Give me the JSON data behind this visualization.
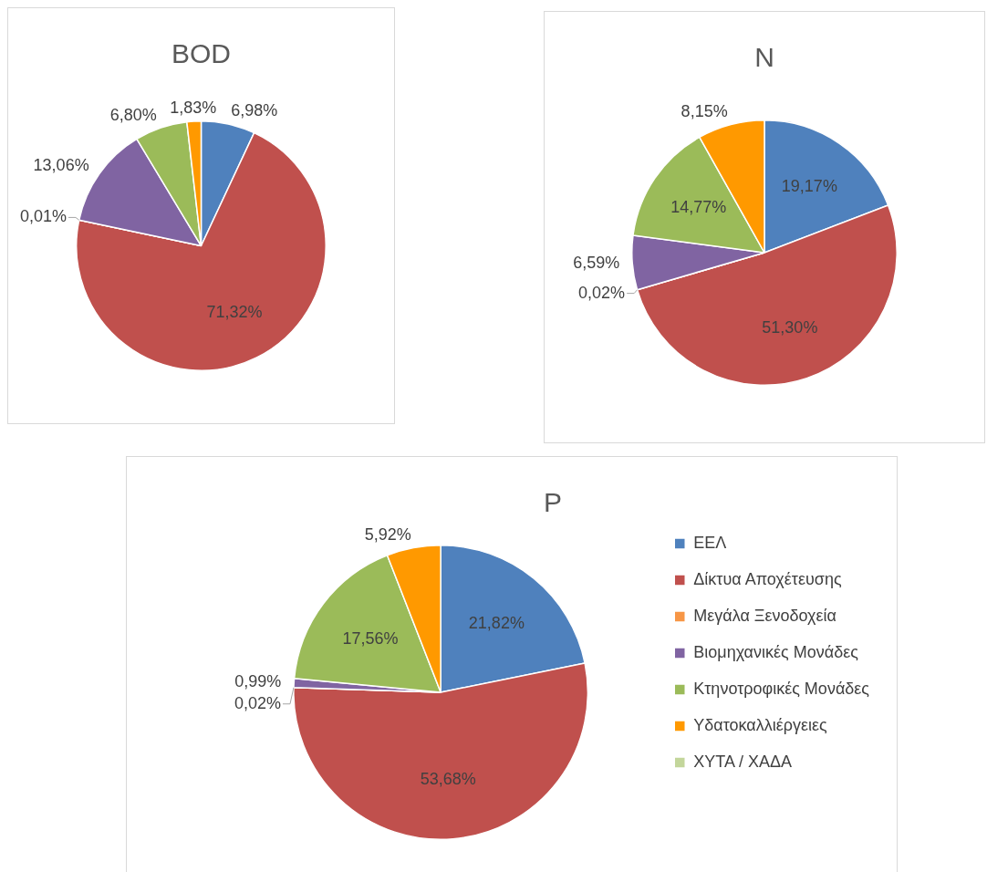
{
  "chart_data": [
    {
      "type": "pie",
      "title": "BOD",
      "categories": [
        null,
        null,
        null,
        null,
        null,
        null,
        null
      ],
      "values": [
        6.98,
        71.32,
        0.01,
        13.06,
        6.8,
        1.83,
        null
      ],
      "value_labels": [
        "6,98%",
        "71,32%",
        "0,01%",
        "13,06%",
        "6,80%",
        "1,83%",
        null
      ],
      "colors": [
        "#4f81bd",
        "#c0504d",
        "#f79646",
        "#8064a2",
        "#9bbb59",
        "#ff9900",
        "#c3d69b"
      ],
      "legend": false
    },
    {
      "type": "pie",
      "title": "N",
      "categories": [
        null,
        null,
        null,
        null,
        null,
        null,
        null
      ],
      "values": [
        19.17,
        51.3,
        0.02,
        6.59,
        14.77,
        8.15,
        null
      ],
      "value_labels": [
        "19,17%",
        "51,30%",
        "0,02%",
        "6,59%",
        "14,77%",
        "8,15%",
        null
      ],
      "colors": [
        "#4f81bd",
        "#c0504d",
        "#f79646",
        "#8064a2",
        "#9bbb59",
        "#ff9900",
        "#c3d69b"
      ],
      "legend": false
    },
    {
      "type": "pie",
      "title": "P",
      "categories": [
        "ΕΕΛ",
        "Δίκτυα Αποχέτευσης",
        "Μεγάλα Ξενοδοχεία",
        "Βιομηχανικές Μονάδες",
        "Κτηνοτροφικές Μονάδες",
        "Υδατοκαλλιέργειες",
        "ΧΥΤΑ / ΧΑΔΑ"
      ],
      "values": [
        21.82,
        53.68,
        0.02,
        0.99,
        17.56,
        5.92,
        null
      ],
      "value_labels": [
        "21,82%",
        "53,68%",
        "0,02%",
        "0,99%",
        "17,56%",
        "5,92%",
        null
      ],
      "colors": [
        "#4f81bd",
        "#c0504d",
        "#f79646",
        "#8064a2",
        "#9bbb59",
        "#ff9900",
        "#c3d69b"
      ],
      "legend": "right"
    }
  ]
}
